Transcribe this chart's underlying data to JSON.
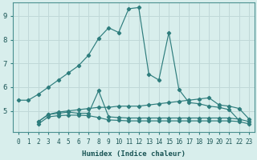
{
  "xlabel": "Humidex (Indice chaleur)",
  "bg_color": "#d8eeec",
  "grid_color": "#c0d8d8",
  "line_color": "#2e7d7d",
  "xlim": [
    -0.5,
    23.5
  ],
  "ylim": [
    4.1,
    9.55
  ],
  "yticks": [
    5,
    6,
    7,
    8,
    9
  ],
  "xticks": [
    0,
    1,
    2,
    3,
    4,
    5,
    6,
    7,
    8,
    9,
    10,
    11,
    12,
    13,
    14,
    15,
    16,
    17,
    18,
    19,
    20,
    21,
    22,
    23
  ],
  "lines": [
    {
      "x": [
        0,
        1,
        2,
        3,
        4,
        5,
        6,
        7,
        8,
        9,
        10,
        11,
        12,
        13,
        14,
        15,
        16,
        17,
        18,
        19,
        20,
        21,
        22
      ],
      "y": [
        5.45,
        5.45,
        5.7,
        6.0,
        6.3,
        6.6,
        6.9,
        7.35,
        8.05,
        8.5,
        8.3,
        9.3,
        9.35,
        6.55,
        6.3,
        8.3,
        5.9,
        5.35,
        5.3,
        5.2,
        5.15,
        5.05,
        4.6
      ]
    },
    {
      "x": [
        2,
        3,
        4,
        5,
        6,
        7,
        8,
        9,
        10,
        11,
        12,
        13,
        14,
        15,
        16,
        17,
        18,
        19,
        20,
        21,
        22,
        23
      ],
      "y": [
        4.55,
        4.85,
        4.95,
        5.0,
        5.05,
        5.1,
        5.15,
        5.15,
        5.2,
        5.2,
        5.2,
        5.25,
        5.3,
        5.35,
        5.4,
        5.45,
        5.5,
        5.55,
        5.25,
        5.2,
        5.1,
        4.65
      ]
    },
    {
      "x": [
        2,
        3,
        4,
        5,
        6,
        7,
        8,
        9,
        10,
        11,
        12,
        13,
        14,
        15,
        16,
        17,
        18,
        19,
        20,
        21,
        22,
        23
      ],
      "y": [
        4.55,
        4.85,
        4.9,
        4.95,
        4.9,
        4.9,
        5.85,
        4.75,
        4.72,
        4.7,
        4.7,
        4.7,
        4.7,
        4.7,
        4.7,
        4.7,
        4.7,
        4.7,
        4.7,
        4.7,
        4.65,
        4.55
      ]
    },
    {
      "x": [
        2,
        3,
        4,
        5,
        6,
        7,
        8,
        9,
        10,
        11,
        12,
        13,
        14,
        15,
        16,
        17,
        18,
        19,
        20,
        21,
        22,
        23
      ],
      "y": [
        4.45,
        4.75,
        4.8,
        4.82,
        4.82,
        4.8,
        4.72,
        4.62,
        4.6,
        4.58,
        4.58,
        4.58,
        4.58,
        4.58,
        4.58,
        4.58,
        4.58,
        4.58,
        4.58,
        4.58,
        4.55,
        4.45
      ]
    }
  ]
}
